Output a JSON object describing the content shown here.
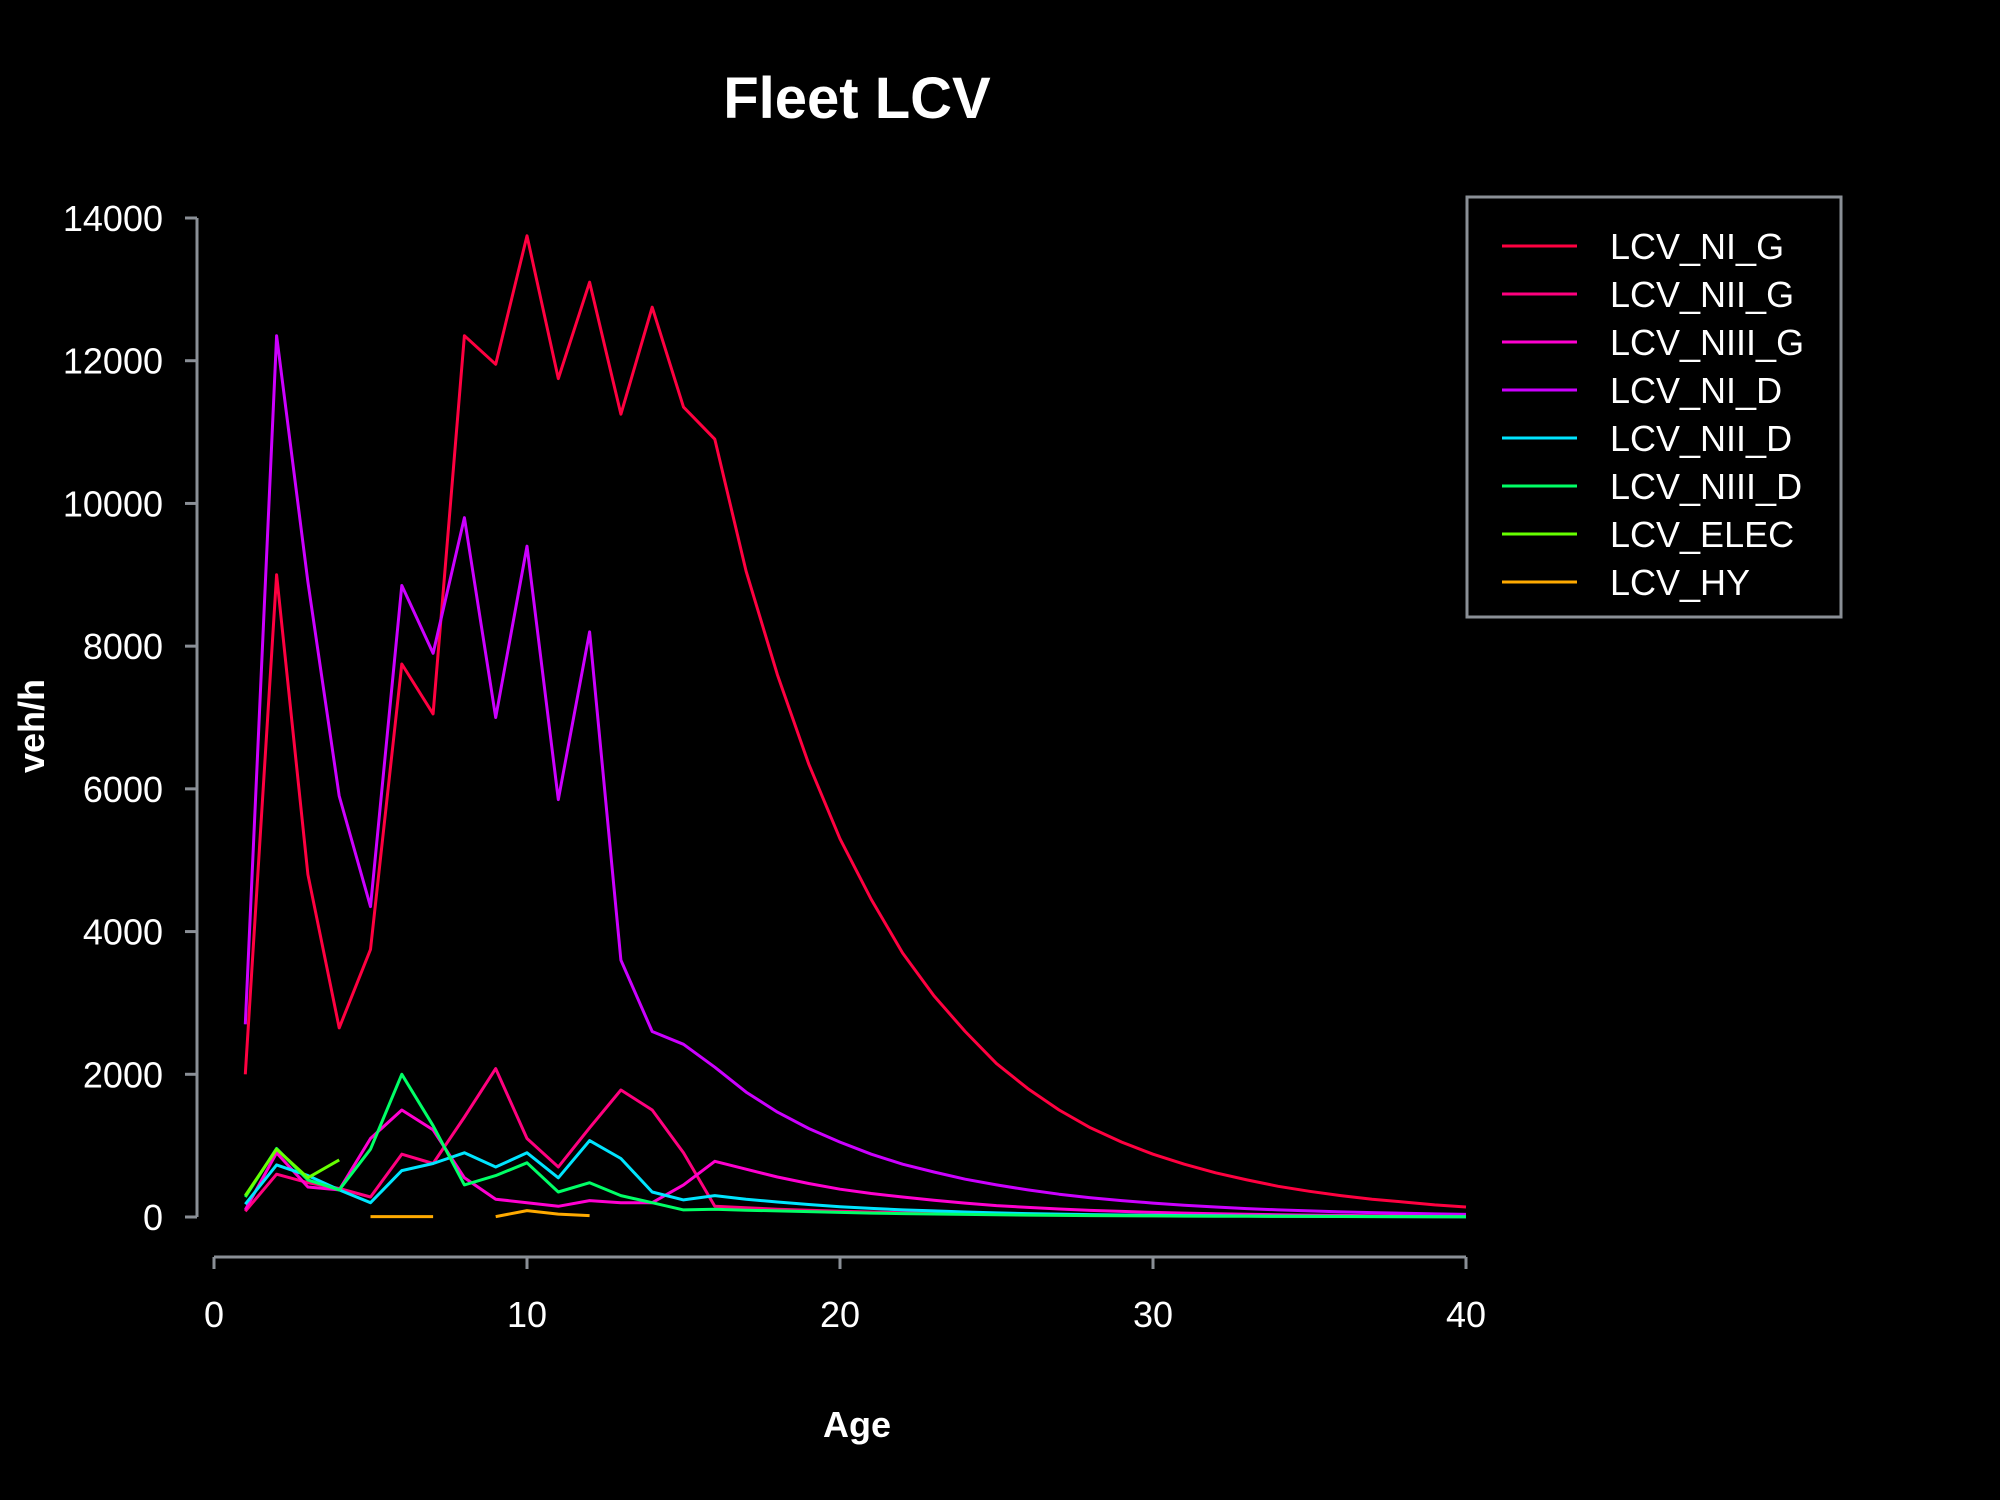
{
  "chart_data": {
    "type": "line",
    "title": "Fleet LCV",
    "xlabel": "Age",
    "ylabel": "veh/h",
    "xlim": [
      0,
      40
    ],
    "ylim": [
      0,
      14000
    ],
    "x_ticks": [
      0,
      10,
      20,
      30,
      40
    ],
    "y_ticks": [
      0,
      2000,
      4000,
      6000,
      8000,
      10000,
      12000,
      14000
    ],
    "legend_position": "top-right",
    "grid": false,
    "series": [
      {
        "name": "LCV_NI_G",
        "color": "#ff0040",
        "x": [
          1,
          2,
          3,
          4,
          5,
          6,
          7,
          8,
          9,
          10,
          11,
          12,
          13,
          14,
          15,
          16,
          17,
          18,
          19,
          20,
          21,
          22,
          23,
          24,
          25,
          26,
          27,
          28,
          29,
          30,
          31,
          32,
          33,
          34,
          35,
          36,
          37,
          38,
          39,
          40
        ],
        "y": [
          2000,
          9000,
          4800,
          2650,
          3750,
          7750,
          7050,
          12350,
          11950,
          13750,
          11750,
          13100,
          11250,
          12750,
          11350,
          10900,
          9050,
          7600,
          6350,
          5300,
          4450,
          3700,
          3100,
          2600,
          2150,
          1800,
          1500,
          1250,
          1050,
          880,
          740,
          620,
          520,
          430,
          360,
          300,
          250,
          210,
          170,
          140
        ]
      },
      {
        "name": "LCV_NII_G",
        "color": "#ff007f",
        "x": [
          1,
          2,
          3,
          4,
          5,
          6,
          7,
          8,
          9,
          10,
          11,
          12,
          13,
          14,
          15,
          16,
          17,
          18,
          19,
          20,
          21,
          22,
          23,
          24,
          25,
          26,
          27,
          28,
          29,
          30,
          31,
          32,
          33,
          34,
          35,
          36,
          37,
          38,
          39,
          40
        ],
        "y": [
          80,
          600,
          480,
          400,
          280,
          880,
          750,
          1400,
          2080,
          1100,
          700,
          1250,
          1780,
          1500,
          900,
          150,
          130,
          110,
          95,
          80,
          70,
          60,
          50,
          45,
          40,
          35,
          30,
          27,
          24,
          20,
          18,
          16,
          14,
          12,
          10,
          9,
          8,
          7,
          6,
          5
        ]
      },
      {
        "name": "LCV_NIII_G",
        "color": "#ff00d0",
        "x": [
          1,
          2,
          3,
          4,
          5,
          6,
          7,
          8,
          9,
          10,
          11,
          12,
          13,
          14,
          15,
          16,
          17,
          18,
          19,
          20,
          21,
          22,
          23,
          24,
          25,
          26,
          27,
          28,
          29,
          30,
          31,
          32,
          33,
          34,
          35,
          36,
          37,
          38,
          39,
          40
        ],
        "y": [
          100,
          900,
          420,
          380,
          1100,
          1500,
          1220,
          550,
          250,
          200,
          150,
          230,
          200,
          200,
          450,
          780,
          670,
          560,
          470,
          390,
          330,
          280,
          235,
          195,
          160,
          135,
          112,
          93,
          78,
          64,
          54,
          45,
          38,
          31,
          26,
          22,
          18,
          15,
          12,
          10
        ]
      },
      {
        "name": "LCV_NI_D",
        "color": "#cc00ff",
        "x": [
          1,
          2,
          3,
          4,
          5,
          6,
          7,
          8,
          9,
          10,
          11,
          12,
          13,
          14,
          15,
          16,
          17,
          18,
          19,
          20,
          21,
          22,
          23,
          24,
          25,
          26,
          27,
          28,
          29,
          30,
          31,
          32,
          33,
          34,
          35,
          36,
          37,
          38,
          39,
          40
        ],
        "y": [
          2700,
          12350,
          8900,
          5900,
          4350,
          8850,
          7900,
          9800,
          7000,
          9400,
          5850,
          8200,
          3600,
          2600,
          2420,
          2100,
          1750,
          1470,
          1240,
          1050,
          880,
          740,
          630,
          530,
          450,
          380,
          320,
          270,
          230,
          195,
          165,
          140,
          118,
          100,
          85,
          72,
          61,
          52,
          44,
          37
        ]
      },
      {
        "name": "LCV_NII_D",
        "color": "#00e5ff",
        "x": [
          1,
          2,
          3,
          4,
          5,
          6,
          7,
          8,
          9,
          10,
          11,
          12,
          13,
          14,
          15,
          16,
          17,
          18,
          19,
          20,
          21,
          22,
          23,
          24,
          25,
          26,
          27,
          28,
          29,
          30,
          31,
          32,
          33,
          34,
          35,
          36,
          37,
          38,
          39,
          40
        ],
        "y": [
          180,
          730,
          580,
          380,
          200,
          650,
          750,
          900,
          700,
          900,
          550,
          1070,
          820,
          350,
          240,
          300,
          250,
          210,
          175,
          145,
          120,
          100,
          85,
          70,
          58,
          48,
          40,
          34,
          28,
          24,
          20,
          17,
          14,
          12,
          10,
          8,
          7,
          6,
          5,
          4
        ]
      },
      {
        "name": "LCV_NIII_D",
        "color": "#00ff66",
        "x": [
          1,
          2,
          3,
          4,
          5,
          6,
          7,
          8,
          9,
          10,
          11,
          12,
          13,
          14,
          15,
          16,
          17,
          18,
          19,
          20,
          21,
          22,
          23,
          24,
          25,
          26,
          27,
          28,
          29,
          30,
          31,
          32,
          33,
          34,
          35,
          36,
          37,
          38,
          39,
          40
        ],
        "y": [
          280,
          960,
          520,
          380,
          950,
          2000,
          1280,
          450,
          580,
          760,
          350,
          480,
          300,
          200,
          100,
          110,
          95,
          85,
          75,
          65,
          55,
          48,
          42,
          36,
          31,
          27,
          23,
          20,
          17,
          15,
          13,
          11,
          10,
          9,
          8,
          7,
          6,
          5,
          4,
          3
        ]
      },
      {
        "name": "LCV_ELEC",
        "color": "#66ff00",
        "x": [
          1,
          2,
          3,
          4
        ],
        "y": [
          300,
          950,
          550,
          800
        ]
      },
      {
        "name": "LCV_HY",
        "color": "#ffaa00",
        "x": [
          5,
          6,
          7,
          null,
          9,
          10,
          11,
          12
        ],
        "y": [
          5,
          5,
          5,
          null,
          5,
          90,
          40,
          20
        ]
      }
    ]
  }
}
